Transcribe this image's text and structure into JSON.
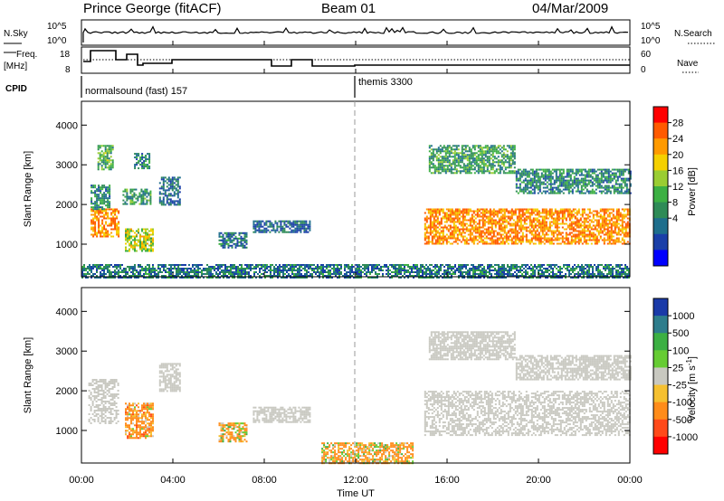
{
  "header": {
    "station": "Prince George (fitACF)",
    "beam": "Beam 01",
    "date": "04/Mar/2009"
  },
  "nsky_panel": {
    "label": "N.Sky",
    "right_label": "N.Search",
    "yticks": [
      "10^5",
      "10^0"
    ],
    "right_yticks": [
      "10^5",
      "10^0"
    ]
  },
  "freq_panel": {
    "label_line1": "Freq.",
    "label_line2": "[MHz]",
    "right_label": "Nave",
    "yticks": [
      "18",
      "8"
    ],
    "right_yticks": [
      "60",
      "0"
    ]
  },
  "cpid_panel": {
    "label": "CPID",
    "modes": [
      {
        "name": "normalsound (fast) 157",
        "start_hour": 0
      },
      {
        "name": "themis 3300",
        "start_hour": 12
      }
    ]
  },
  "time_axis": {
    "xlabel": "Time UT",
    "ticks": [
      "00:00",
      "04:00",
      "08:00",
      "12:00",
      "16:00",
      "20:00",
      "00:00"
    ]
  },
  "power_colorbar": {
    "label": "Power [dB]",
    "ticks": [
      "28",
      "24",
      "20",
      "16",
      "12",
      "8",
      "4"
    ],
    "colors": [
      "#ff0000",
      "#ff5a00",
      "#ff9a00",
      "#f5d000",
      "#9acd32",
      "#3cb043",
      "#2e8b57",
      "#1e6e8c",
      "#1a3fa8",
      "#0000ff"
    ]
  },
  "velocity_colorbar": {
    "label": "Velocity [m s^-1]",
    "ticks": [
      "1000",
      "500",
      "100",
      "25",
      "-25",
      "-100",
      "-500",
      "-1000"
    ],
    "colors": [
      "#1a3aa8",
      "#2e7d8c",
      "#3cb043",
      "#66cc33",
      "#c8c8c0",
      "#f5c030",
      "#ff8c1a",
      "#ff4a1a",
      "#ff0000"
    ]
  },
  "chart_data": [
    {
      "type": "heatmap",
      "title": "",
      "xlabel": "",
      "ylabel": "Slant Range [km]",
      "xlim": [
        0,
        24
      ],
      "ylim": [
        180,
        4600
      ],
      "yticks": [
        "4000",
        "3000",
        "2000",
        "1000"
      ],
      "colorbar_label": "Power [dB]",
      "echo_regions": [
        {
          "t": [
            0.4,
            1.6
          ],
          "r": [
            1200,
            1900
          ],
          "power": 26
        },
        {
          "t": [
            0.4,
            1.2
          ],
          "r": [
            1900,
            2500
          ],
          "power": 10
        },
        {
          "t": [
            0.7,
            1.4
          ],
          "r": [
            2900,
            3500
          ],
          "power": 14
        },
        {
          "t": [
            1.9,
            3.1
          ],
          "r": [
            850,
            1400
          ],
          "power": 18
        },
        {
          "t": [
            1.8,
            3.0
          ],
          "r": [
            2000,
            2400
          ],
          "power": 12
        },
        {
          "t": [
            2.3,
            3.0
          ],
          "r": [
            2900,
            3300
          ],
          "power": 10
        },
        {
          "t": [
            3.4,
            4.3
          ],
          "r": [
            2000,
            2700
          ],
          "power": 6
        },
        {
          "t": [
            6.0,
            7.2
          ],
          "r": [
            900,
            1300
          ],
          "power": 8
        },
        {
          "t": [
            7.5,
            10.0
          ],
          "r": [
            1300,
            1600
          ],
          "power": 6
        },
        {
          "t": [
            15.0,
            24.0
          ],
          "r": [
            1000,
            1900
          ],
          "power": 26
        },
        {
          "t": [
            15.2,
            19.0
          ],
          "r": [
            2800,
            3500
          ],
          "power": 12
        },
        {
          "t": [
            19.0,
            24.0
          ],
          "r": [
            2300,
            2900
          ],
          "power": 10
        },
        {
          "t": [
            0.0,
            24.0
          ],
          "r": [
            180,
            500
          ],
          "power": 8
        }
      ]
    },
    {
      "type": "heatmap",
      "title": "",
      "xlabel": "Time UT",
      "ylabel": "Slant Range [km]",
      "xlim": [
        0,
        24
      ],
      "ylim": [
        180,
        4600
      ],
      "yticks": [
        "4000",
        "3000",
        "2000",
        "1000"
      ],
      "colorbar_label": "Velocity [m s^-1]",
      "echo_regions": [
        {
          "t": [
            0.3,
            1.6
          ],
          "r": [
            1200,
            2300
          ],
          "velocity": 0
        },
        {
          "t": [
            1.9,
            3.1
          ],
          "r": [
            800,
            1700
          ],
          "velocity": -250
        },
        {
          "t": [
            3.4,
            4.3
          ],
          "r": [
            2000,
            2700
          ],
          "velocity": 0
        },
        {
          "t": [
            6.0,
            7.2
          ],
          "r": [
            700,
            1200
          ],
          "velocity": -150
        },
        {
          "t": [
            7.5,
            10.0
          ],
          "r": [
            1200,
            1600
          ],
          "velocity": 0
        },
        {
          "t": [
            10.5,
            14.5
          ],
          "r": [
            180,
            700
          ],
          "velocity": -150
        },
        {
          "t": [
            15.0,
            24.0
          ],
          "r": [
            900,
            2000
          ],
          "velocity": 0
        },
        {
          "t": [
            15.2,
            19.0
          ],
          "r": [
            2800,
            3500
          ],
          "velocity": 0
        },
        {
          "t": [
            19.0,
            24.0
          ],
          "r": [
            2300,
            2900
          ],
          "velocity": 0
        }
      ]
    }
  ]
}
